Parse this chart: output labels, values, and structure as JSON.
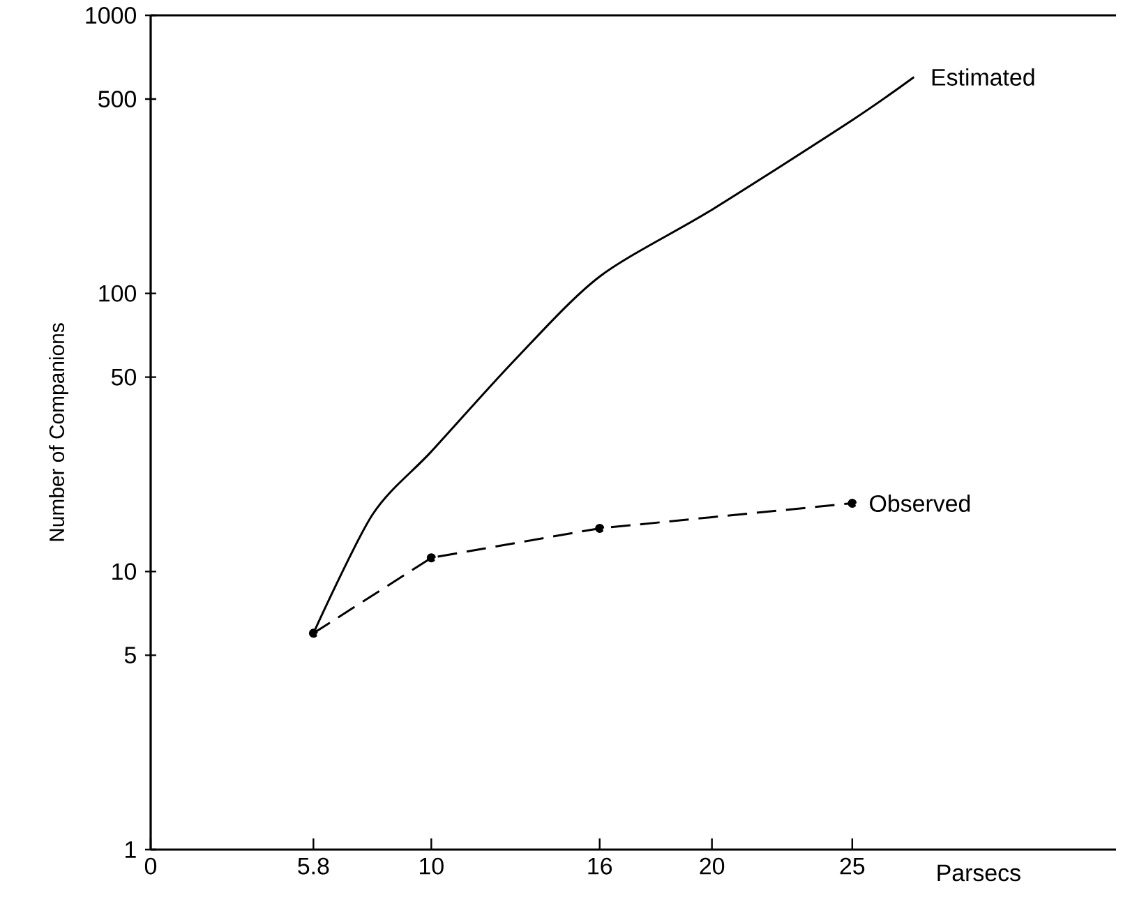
{
  "chart_data": {
    "type": "line",
    "xlabel": "Parsecs",
    "ylabel": "Number of Companions",
    "log": "y",
    "grid": false,
    "xlim": [
      0,
      34.4
    ],
    "ylim": [
      1,
      1000
    ],
    "xticks": [
      0,
      5.8,
      10,
      16,
      20,
      25
    ],
    "yticks": [
      1,
      5,
      10,
      50,
      100,
      500,
      1000
    ],
    "series": [
      {
        "name": "Estimated",
        "color": "#000000",
        "line_style": "solid",
        "marker": "none",
        "x": [
          5.8,
          7.9,
          10,
          13,
          16,
          20,
          25,
          27.2
        ],
        "values": [
          6,
          16,
          27,
          58,
          115,
          200,
          420,
          600
        ]
      },
      {
        "name": "Observed",
        "color": "#000000",
        "line_style": "dashed",
        "marker": "circle",
        "x": [
          5.8,
          10,
          16,
          25
        ],
        "values": [
          6,
          11.2,
          14.3,
          17.6
        ]
      }
    ]
  }
}
